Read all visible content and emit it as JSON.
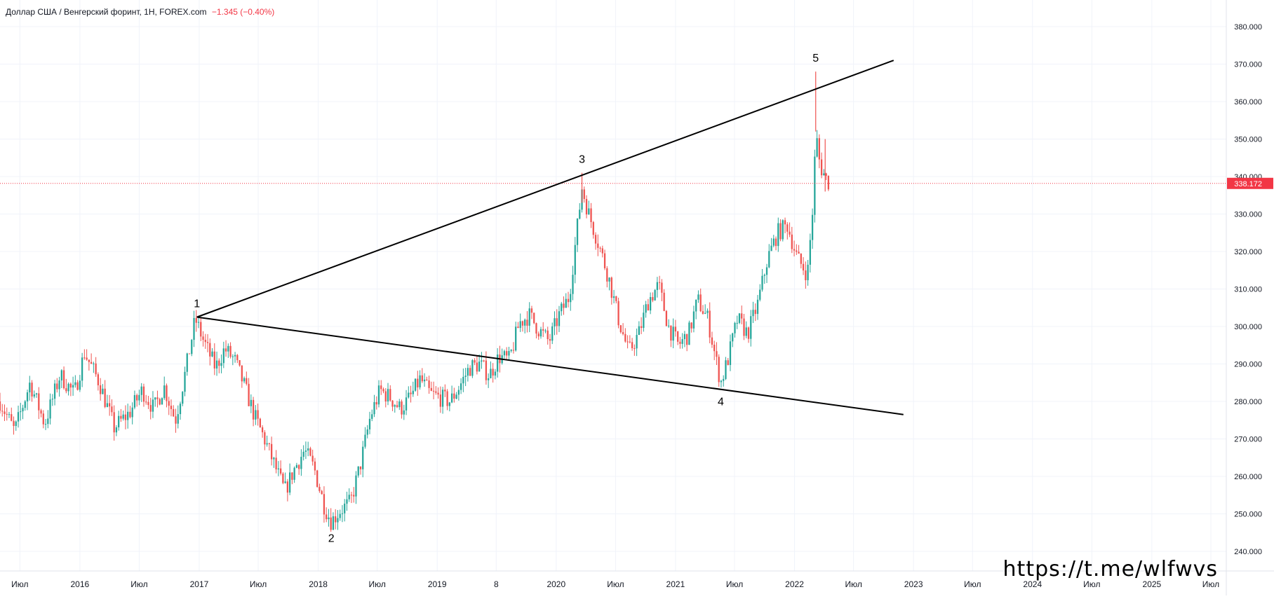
{
  "legend": {
    "symbol": "Доллар США / Венгерский форинт, 1Н, FOREX.com",
    "change": "−1.345 (−0.40%)"
  },
  "watermark": "https://t.me/wlfwvs",
  "colors": {
    "up": "#26a69a",
    "down": "#ef5350",
    "line": "#000000",
    "price_line": "#f23645",
    "grid": "#f0f3fa"
  },
  "chart_data": {
    "type": "candlestick",
    "last_price": 338.172,
    "last_price_label": "338.172",
    "ylim": [
      235,
      385
    ],
    "y_ticks": [
      240,
      250,
      260,
      270,
      280,
      290,
      300,
      310,
      320,
      330,
      340,
      350,
      360,
      370,
      380
    ],
    "y_tick_labels": [
      "240.000",
      "250.000",
      "260.000",
      "270.000",
      "280.000",
      "290.000",
      "300.000",
      "310.000",
      "320.000",
      "330.000",
      "340.000",
      "350.000",
      "360.000",
      "370.000",
      "380.000"
    ],
    "xlim": [
      "2015-05-01",
      "2026-01-15"
    ],
    "x_ticks": [
      {
        "date": "2015-07-01",
        "label": "Июл"
      },
      {
        "date": "2016-01-01",
        "label": "2016"
      },
      {
        "date": "2016-07-01",
        "label": "Июл"
      },
      {
        "date": "2017-01-01",
        "label": "2017"
      },
      {
        "date": "2017-07-01",
        "label": "Июл"
      },
      {
        "date": "2018-01-01",
        "label": "2018"
      },
      {
        "date": "2018-07-01",
        "label": "Июл"
      },
      {
        "date": "2019-01-01",
        "label": "2019"
      },
      {
        "date": "2019-07-01",
        "label": "8"
      },
      {
        "date": "2020-01-01",
        "label": "2020"
      },
      {
        "date": "2020-07-01",
        "label": "Июл"
      },
      {
        "date": "2021-01-01",
        "label": "2021"
      },
      {
        "date": "2021-07-01",
        "label": "Июл"
      },
      {
        "date": "2022-01-01",
        "label": "2022"
      },
      {
        "date": "2022-07-01",
        "label": "Июл"
      },
      {
        "date": "2023-01-01",
        "label": "2023"
      },
      {
        "date": "2023-07-01",
        "label": "Июл"
      },
      {
        "date": "2024-01-01",
        "label": "2024"
      },
      {
        "date": "2024-07-01",
        "label": "Июл"
      },
      {
        "date": "2025-01-01",
        "label": "2025"
      },
      {
        "date": "2025-07-01",
        "label": "Июл"
      }
    ],
    "price_path": [
      [
        "2015-05-01",
        280
      ],
      [
        "2015-06-15",
        272
      ],
      [
        "2015-08-01",
        285
      ],
      [
        "2015-09-15",
        274
      ],
      [
        "2015-11-01",
        287
      ],
      [
        "2015-12-15",
        282
      ],
      [
        "2016-01-15",
        293
      ],
      [
        "2016-03-01",
        285
      ],
      [
        "2016-04-15",
        273
      ],
      [
        "2016-06-01",
        277
      ],
      [
        "2016-07-10",
        283
      ],
      [
        "2016-08-15",
        278
      ],
      [
        "2016-09-15",
        284
      ],
      [
        "2016-10-20",
        275
      ],
      [
        "2016-11-20",
        288
      ],
      [
        "2016-12-20",
        302
      ],
      [
        "2017-01-15",
        296
      ],
      [
        "2017-02-20",
        289
      ],
      [
        "2017-03-20",
        294
      ],
      [
        "2017-04-20",
        291
      ],
      [
        "2017-05-20",
        284
      ],
      [
        "2017-06-20",
        276
      ],
      [
        "2017-07-20",
        270
      ],
      [
        "2017-08-20",
        263
      ],
      [
        "2017-09-20",
        256
      ],
      [
        "2017-10-20",
        262
      ],
      [
        "2017-11-20",
        267
      ],
      [
        "2017-12-20",
        262
      ],
      [
        "2018-01-20",
        252
      ],
      [
        "2018-02-10",
        248
      ],
      [
        "2018-03-10",
        251
      ],
      [
        "2018-04-10",
        253
      ],
      [
        "2018-05-10",
        263
      ],
      [
        "2018-06-10",
        276
      ],
      [
        "2018-07-10",
        283
      ],
      [
        "2018-08-10",
        281
      ],
      [
        "2018-09-10",
        278
      ],
      [
        "2018-10-10",
        281
      ],
      [
        "2018-11-10",
        286
      ],
      [
        "2018-12-10",
        282
      ],
      [
        "2019-01-10",
        281
      ],
      [
        "2019-02-10",
        280
      ],
      [
        "2019-03-10",
        284
      ],
      [
        "2019-04-10",
        289
      ],
      [
        "2019-05-10",
        290
      ],
      [
        "2019-06-10",
        287
      ],
      [
        "2019-07-10",
        292
      ],
      [
        "2019-08-10",
        291
      ],
      [
        "2019-09-10",
        301
      ],
      [
        "2019-10-10",
        303
      ],
      [
        "2019-11-10",
        299
      ],
      [
        "2019-12-10",
        296
      ],
      [
        "2020-01-10",
        303
      ],
      [
        "2020-02-10",
        308
      ],
      [
        "2020-03-01",
        323
      ],
      [
        "2020-03-20",
        337
      ],
      [
        "2020-04-10",
        330
      ],
      [
        "2020-05-10",
        322
      ],
      [
        "2020-06-10",
        313
      ],
      [
        "2020-07-10",
        302
      ],
      [
        "2020-08-10",
        293
      ],
      [
        "2020-09-10",
        298
      ],
      [
        "2020-10-10",
        307
      ],
      [
        "2020-11-10",
        311
      ],
      [
        "2020-12-10",
        300
      ],
      [
        "2021-01-10",
        295
      ],
      [
        "2021-02-10",
        298
      ],
      [
        "2021-03-10",
        307
      ],
      [
        "2021-04-10",
        302
      ],
      [
        "2021-05-10",
        289
      ],
      [
        "2021-05-20",
        285
      ],
      [
        "2021-06-10",
        291
      ],
      [
        "2021-07-10",
        302
      ],
      [
        "2021-08-10",
        298
      ],
      [
        "2021-09-10",
        306
      ],
      [
        "2021-10-10",
        318
      ],
      [
        "2021-11-10",
        325
      ],
      [
        "2021-12-10",
        327
      ],
      [
        "2022-01-10",
        318
      ],
      [
        "2022-02-10",
        314
      ],
      [
        "2022-02-28",
        334
      ],
      [
        "2022-03-07",
        352
      ],
      [
        "2022-03-20",
        343
      ],
      [
        "2022-04-10",
        339
      ],
      [
        "2022-04-20",
        338.172
      ]
    ],
    "spikes": [
      {
        "date": "2020-03-20",
        "high": 341,
        "low": 333
      },
      {
        "date": "2022-03-07",
        "high": 368,
        "low": 352
      },
      {
        "date": "2022-04-05",
        "high": 350,
        "low": 336
      }
    ],
    "trendlines": [
      {
        "from": [
          "2016-12-25",
          302.5
        ],
        "to": [
          "2022-11-01",
          371
        ]
      },
      {
        "from": [
          "2016-12-25",
          302.5
        ],
        "to": [
          "2022-12-01",
          276.5
        ]
      }
    ],
    "annotations": [
      {
        "text": "1",
        "date": "2016-12-25",
        "price": 302.5,
        "pos": "above"
      },
      {
        "text": "2",
        "date": "2018-02-10",
        "price": 247,
        "pos": "below"
      },
      {
        "text": "3",
        "date": "2020-03-20",
        "price": 341,
        "pos": "above"
      },
      {
        "text": "4",
        "date": "2021-05-20",
        "price": 283.5,
        "pos": "below"
      },
      {
        "text": "5",
        "date": "2022-03-07",
        "price": 368,
        "pos": "above"
      }
    ]
  }
}
